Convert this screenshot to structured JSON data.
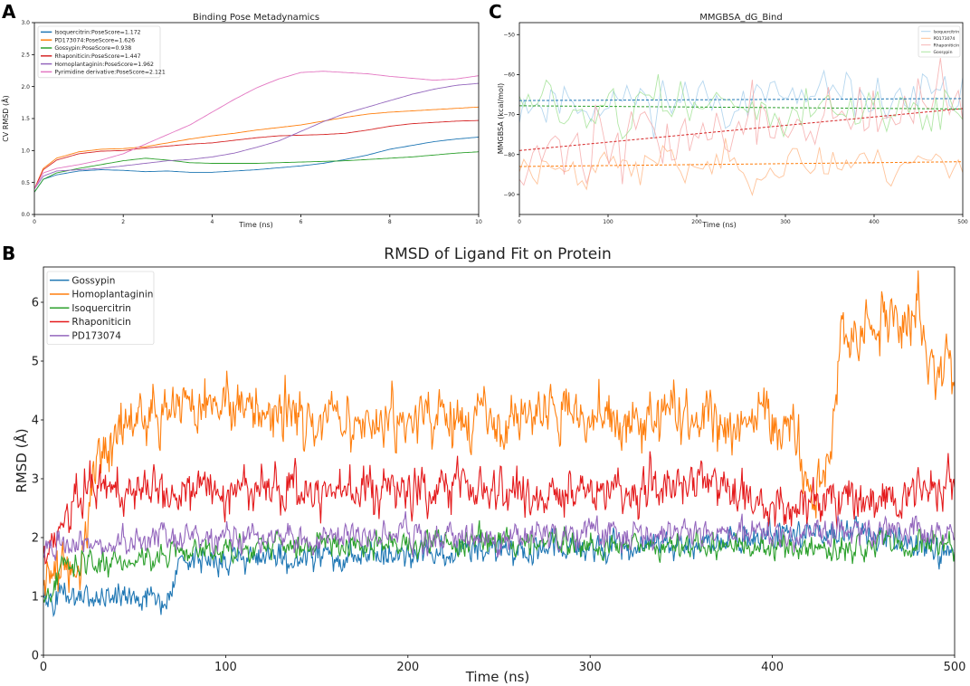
{
  "panel_labels": {
    "a": "A",
    "b": "B",
    "c": "C"
  },
  "chart_data": [
    {
      "id": "A",
      "type": "line",
      "title": "Binding Pose Metadynamics",
      "xlabel": "Time (ns)",
      "ylabel": "CV RMSD (Å)",
      "xlim": [
        0,
        10
      ],
      "ylim": [
        0,
        3.0
      ],
      "xticks": [
        0,
        2,
        4,
        6,
        8,
        10
      ],
      "xtick_labels": [
        "0",
        "2",
        "4",
        "6",
        "8",
        "10"
      ],
      "yticks": [
        0,
        0.5,
        1.0,
        1.5,
        2.0,
        2.5,
        3.0
      ],
      "ytick_labels": [
        "0.0",
        "0.5",
        "1.0",
        "1.5",
        "2.0",
        "2.5",
        "3.0"
      ],
      "legend_position": "top-left",
      "series": [
        {
          "name": "Isoquercitrin:PoseScore=1.172",
          "color": "#1f77b4",
          "x": [
            0,
            0.2,
            0.5,
            1,
            1.5,
            2,
            2.5,
            3,
            3.5,
            4,
            4.5,
            5,
            5.5,
            6,
            6.5,
            7,
            7.5,
            8,
            8.5,
            9,
            9.5,
            10
          ],
          "y": [
            0.35,
            0.55,
            0.62,
            0.68,
            0.7,
            0.69,
            0.67,
            0.68,
            0.66,
            0.66,
            0.68,
            0.7,
            0.73,
            0.76,
            0.8,
            0.86,
            0.93,
            1.02,
            1.08,
            1.14,
            1.18,
            1.21
          ]
        },
        {
          "name": "PD173074:PoseScore=1.626",
          "color": "#ff7f0e",
          "x": [
            0,
            0.2,
            0.5,
            1,
            1.5,
            2,
            2.5,
            3,
            3.5,
            4,
            4.5,
            5,
            5.5,
            6,
            6.5,
            7,
            7.5,
            8,
            8.5,
            9,
            9.5,
            10
          ],
          "y": [
            0.4,
            0.72,
            0.88,
            0.98,
            1.02,
            1.03,
            1.06,
            1.12,
            1.18,
            1.23,
            1.27,
            1.32,
            1.36,
            1.4,
            1.46,
            1.52,
            1.57,
            1.6,
            1.62,
            1.64,
            1.66,
            1.68
          ]
        },
        {
          "name": "Gossypin:PoseScore=0.938",
          "color": "#2ca02c",
          "x": [
            0,
            0.2,
            0.5,
            1,
            1.5,
            2,
            2.5,
            3,
            3.5,
            4,
            4.5,
            5,
            5.5,
            6,
            6.5,
            7,
            7.5,
            8,
            8.5,
            9,
            9.5,
            10
          ],
          "y": [
            0.35,
            0.55,
            0.65,
            0.72,
            0.78,
            0.84,
            0.88,
            0.85,
            0.81,
            0.8,
            0.8,
            0.8,
            0.81,
            0.82,
            0.83,
            0.84,
            0.86,
            0.88,
            0.9,
            0.93,
            0.96,
            0.98
          ]
        },
        {
          "name": "Rhaponiticin:PoseScore=1.447",
          "color": "#d62728",
          "x": [
            0,
            0.2,
            0.5,
            1,
            1.5,
            2,
            2.5,
            3,
            3.5,
            4,
            4.5,
            5,
            5.5,
            6,
            6.5,
            7,
            7.5,
            8,
            8.5,
            9,
            9.5,
            10
          ],
          "y": [
            0.4,
            0.7,
            0.85,
            0.95,
            0.99,
            1.0,
            1.04,
            1.07,
            1.1,
            1.12,
            1.16,
            1.2,
            1.23,
            1.24,
            1.25,
            1.27,
            1.32,
            1.38,
            1.42,
            1.44,
            1.46,
            1.47
          ]
        },
        {
          "name": "Homoplantaginin:PoseScore=1.962",
          "color": "#9467bd",
          "x": [
            0,
            0.2,
            0.5,
            1,
            1.5,
            2,
            2.5,
            3,
            3.5,
            4,
            4.5,
            5,
            5.5,
            6,
            6.5,
            7,
            7.5,
            8,
            8.5,
            9,
            9.5,
            10
          ],
          "y": [
            0.4,
            0.6,
            0.68,
            0.7,
            0.72,
            0.76,
            0.8,
            0.84,
            0.86,
            0.9,
            0.96,
            1.05,
            1.15,
            1.3,
            1.45,
            1.58,
            1.68,
            1.78,
            1.88,
            1.96,
            2.02,
            2.05
          ]
        },
        {
          "name": "Pyrimidine derivative:PoseScore=2.121",
          "color": "#e377c2",
          "x": [
            0,
            0.2,
            0.5,
            1,
            1.5,
            2,
            2.5,
            3,
            3.5,
            4,
            4.5,
            5,
            5.5,
            6,
            6.5,
            7,
            7.5,
            8,
            8.5,
            9,
            9.5,
            10
          ],
          "y": [
            0.4,
            0.65,
            0.72,
            0.78,
            0.85,
            0.95,
            1.1,
            1.25,
            1.4,
            1.6,
            1.8,
            1.98,
            2.12,
            2.22,
            2.24,
            2.22,
            2.2,
            2.16,
            2.13,
            2.1,
            2.12,
            2.17
          ]
        }
      ]
    },
    {
      "id": "C",
      "type": "line",
      "title": "MMGBSA_dG_Bind",
      "xlabel": "Time (ns)",
      "ylabel": "MMGBSA (kcal/mol)",
      "xlim": [
        0,
        500
      ],
      "ylim": [
        -95,
        -47
      ],
      "xticks": [
        0,
        100,
        200,
        300,
        400,
        500
      ],
      "xtick_labels": [
        "0",
        "100",
        "200",
        "300",
        "400",
        "500"
      ],
      "yticks": [
        -90,
        -80,
        -70,
        -60,
        -50
      ],
      "ytick_labels": [
        "−90",
        "−80",
        "−70",
        "−60",
        "−50"
      ],
      "legend_position": "top-right",
      "n_points": 100,
      "series": [
        {
          "name": "Isoquercitrin",
          "color": "#9ecae9",
          "mean": -66,
          "spread": 6,
          "seed": 11,
          "trend": [
            -66.5,
            -66.0
          ]
        },
        {
          "name": "PD173074",
          "color": "#ffb07a",
          "mean": -84,
          "spread": 5,
          "seed": 23,
          "trend": [
            -83.0,
            -81.8
          ]
        },
        {
          "name": "Rhaponiticin",
          "color": "#f4a0a0",
          "mean": -74,
          "spread": 9,
          "seed": 37,
          "trend": [
            -79.0,
            -68.5
          ]
        },
        {
          "name": "Gossypin",
          "color": "#98df8a",
          "mean": -68,
          "spread": 6,
          "seed": 51,
          "trend": [
            -67.8,
            -68.6
          ]
        }
      ]
    },
    {
      "id": "B",
      "type": "line",
      "title": "RMSD of Ligand Fit on Protein",
      "xlabel": "Time (ns)",
      "ylabel": "RMSD (Å)",
      "xlim": [
        0,
        500
      ],
      "ylim": [
        0,
        6.6
      ],
      "xticks": [
        0,
        100,
        200,
        300,
        400,
        500
      ],
      "xtick_labels": [
        "0",
        "100",
        "200",
        "300",
        "400",
        "500"
      ],
      "yticks": [
        0,
        1,
        2,
        3,
        4,
        5,
        6
      ],
      "ytick_labels": [
        "0",
        "1",
        "2",
        "3",
        "4",
        "5",
        "6"
      ],
      "legend_position": "top-left",
      "n_points": 1000,
      "series": [
        {
          "name": "Gossypin",
          "color": "#1f77b4",
          "seed": 101,
          "noise": 0.22,
          "segments": [
            [
              0,
              1.0
            ],
            [
              70,
              1.0
            ],
            [
              75,
              1.6
            ],
            [
              150,
              1.7
            ],
            [
              250,
              1.8
            ],
            [
              350,
              1.9
            ],
            [
              440,
              2.1
            ],
            [
              500,
              1.8
            ]
          ]
        },
        {
          "name": "Homoplantaginin",
          "color": "#ff7f0e",
          "seed": 202,
          "noise": 0.45,
          "segments": [
            [
              0,
              1.5
            ],
            [
              20,
              1.7
            ],
            [
              30,
              3.5
            ],
            [
              60,
              4.2
            ],
            [
              150,
              4.0
            ],
            [
              300,
              4.1
            ],
            [
              410,
              4.0
            ],
            [
              420,
              2.6
            ],
            [
              432,
              3.4
            ],
            [
              438,
              5.4
            ],
            [
              470,
              5.7
            ],
            [
              480,
              5.9
            ],
            [
              485,
              5.0
            ],
            [
              500,
              4.7
            ]
          ]
        },
        {
          "name": "Isoquercitrin",
          "color": "#2ca02c",
          "seed": 303,
          "noise": 0.2,
          "segments": [
            [
              0,
              0.9
            ],
            [
              10,
              1.5
            ],
            [
              60,
              1.7
            ],
            [
              150,
              1.9
            ],
            [
              300,
              1.9
            ],
            [
              420,
              1.8
            ],
            [
              500,
              1.9
            ]
          ]
        },
        {
          "name": "Rhaponiticin",
          "color": "#e41a1c",
          "seed": 404,
          "noise": 0.35,
          "segments": [
            [
              0,
              1.6
            ],
            [
              20,
              2.8
            ],
            [
              80,
              2.8
            ],
            [
              200,
              2.8
            ],
            [
              330,
              2.8
            ],
            [
              360,
              3.0
            ],
            [
              400,
              2.5
            ],
            [
              500,
              2.8
            ]
          ]
        },
        {
          "name": "PD173074",
          "color": "#9467bd",
          "seed": 505,
          "noise": 0.22,
          "segments": [
            [
              0,
              1.8
            ],
            [
              60,
              2.0
            ],
            [
              150,
              2.0
            ],
            [
              250,
              2.0
            ],
            [
              350,
              2.1
            ],
            [
              400,
              2.1
            ],
            [
              500,
              2.1
            ]
          ]
        }
      ]
    }
  ]
}
